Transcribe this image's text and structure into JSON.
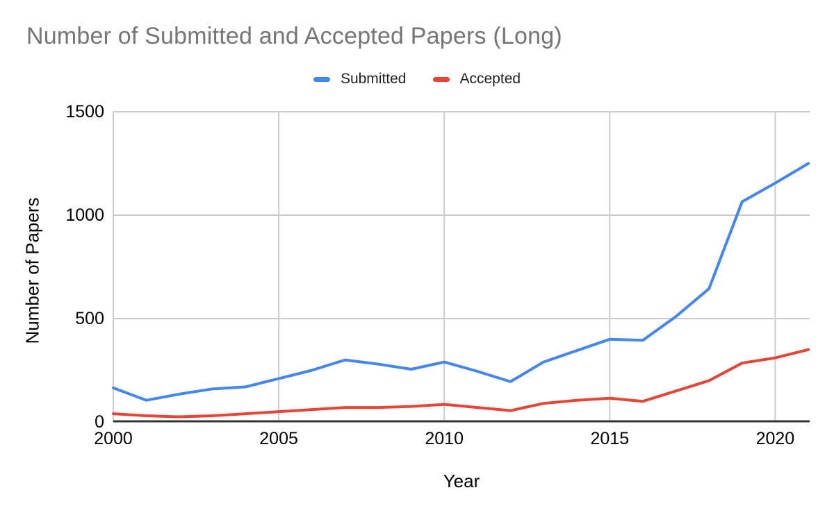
{
  "title": "Number of Submitted and Accepted Papers (Long)",
  "colors": {
    "title_text": "#757575",
    "axis_text": "#000000",
    "gridline": "#cccccc",
    "baseline": "#333333",
    "submitted": "#4285F4",
    "accepted": "#EA4335"
  },
  "chart_data": {
    "type": "line",
    "title": "Number of Submitted and Accepted Papers (Long)",
    "xlabel": "Year",
    "ylabel": "Number of Papers",
    "legend_position": "top",
    "grid": true,
    "x": [
      2000,
      2001,
      2002,
      2003,
      2004,
      2005,
      2006,
      2007,
      2008,
      2009,
      2010,
      2011,
      2012,
      2013,
      2014,
      2015,
      2016,
      2017,
      2018,
      2019,
      2020,
      2021
    ],
    "series": [
      {
        "name": "Submitted",
        "color": "#4285F4",
        "values": [
          165,
          105,
          135,
          160,
          170,
          210,
          250,
          300,
          280,
          255,
          290,
          245,
          195,
          290,
          345,
          400,
          395,
          510,
          645,
          1065,
          1155,
          1250
        ]
      },
      {
        "name": "Accepted",
        "color": "#EA4335",
        "values": [
          40,
          30,
          25,
          30,
          40,
          50,
          60,
          70,
          70,
          75,
          85,
          70,
          55,
          90,
          105,
          115,
          100,
          150,
          200,
          285,
          310,
          350
        ]
      }
    ],
    "ylim": [
      0,
      1500
    ],
    "yticks": [
      0,
      500,
      1000,
      1500
    ],
    "xticks": [
      2000,
      2005,
      2010,
      2015,
      2020
    ]
  }
}
